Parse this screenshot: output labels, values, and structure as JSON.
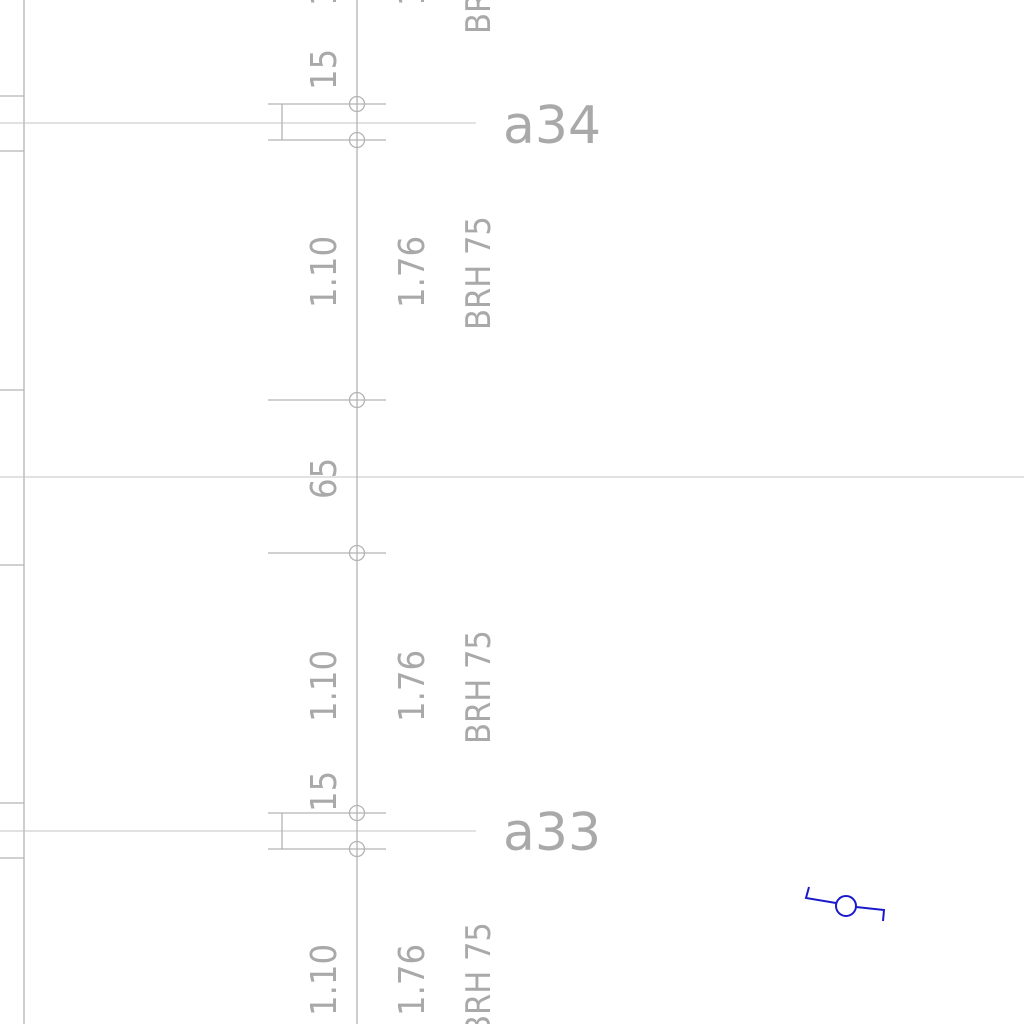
{
  "axes": {
    "upper_label": "a34",
    "lower_label": "a33"
  },
  "top_partial": {
    "dim": "1",
    "alt": "1",
    "brh": "BR"
  },
  "segments": [
    {
      "dim": "15"
    },
    {
      "dim": "1.10",
      "alt": "1.76",
      "brh": "BRH 75"
    },
    {
      "dim": "65"
    },
    {
      "dim": "1.10",
      "alt": "1.76",
      "brh": "BRH 75"
    },
    {
      "dim": "15"
    },
    {
      "dim": "1.10",
      "alt": "1.76",
      "brh": "BRH 75"
    }
  ],
  "colors": {
    "lines": "#b3b3b3",
    "text": "#a9a9a9",
    "symbol": "#1a1acc"
  },
  "symbol": "switch-symbol"
}
